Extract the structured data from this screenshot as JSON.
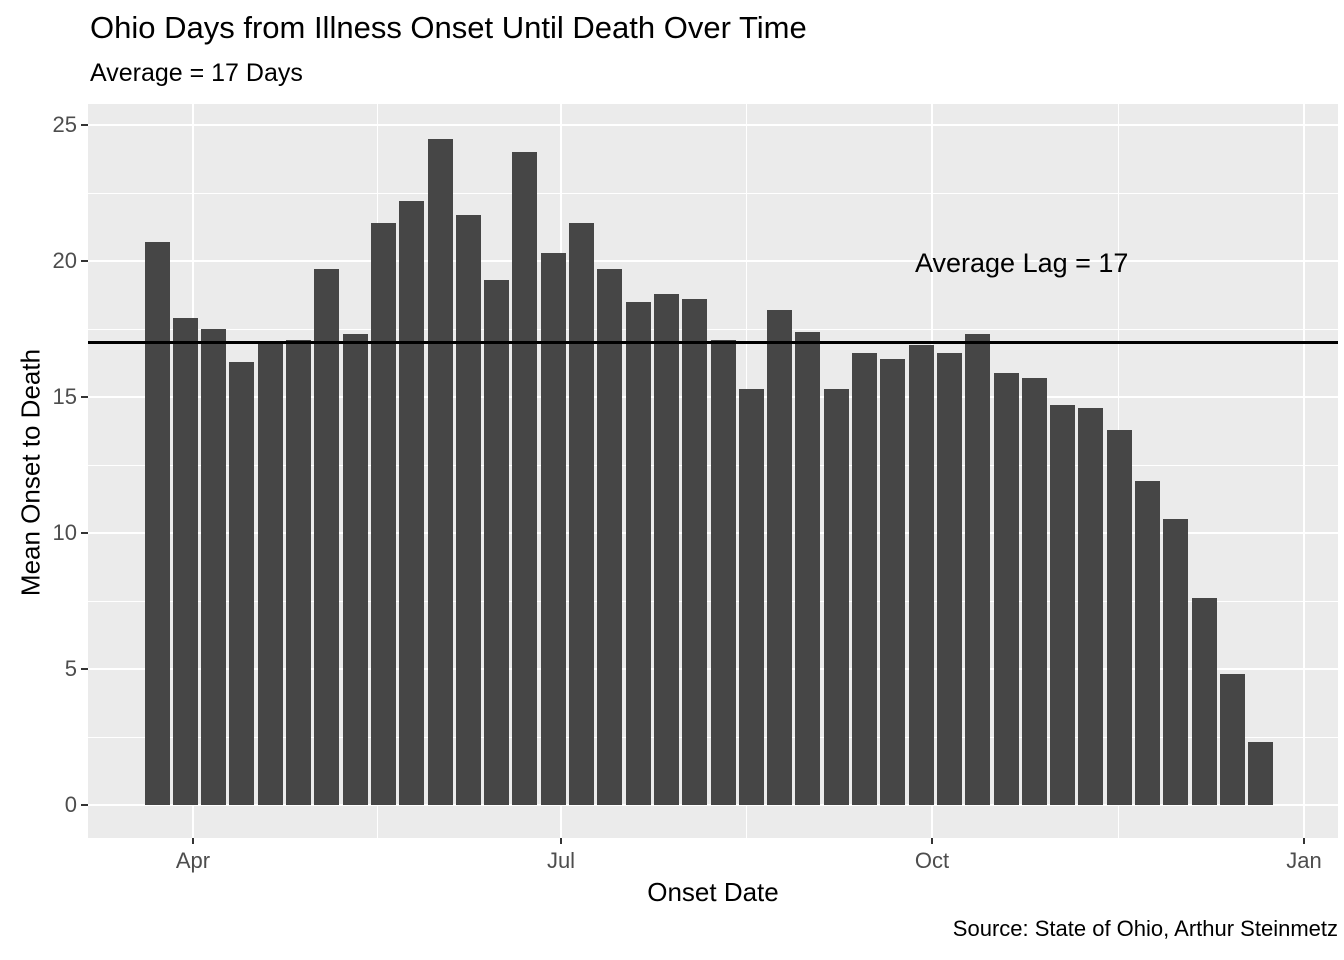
{
  "title": "Ohio Days from Illness Onset Until Death Over Time",
  "subtitle": "Average = 17 Days",
  "annotation": "Average Lag = 17",
  "caption": "Source: State of Ohio, Arthur Steinmetz",
  "x_axis": {
    "label": "Onset Date",
    "tick_labels": [
      "Apr",
      "Jul",
      "Oct",
      "Jan"
    ]
  },
  "y_axis": {
    "label": "Mean Onset to Death",
    "tick_labels": [
      "25",
      "20",
      "15",
      "10",
      "5",
      "0"
    ]
  },
  "colors": {
    "bar_fill": "#464646",
    "panel_background": "#EBEBEB",
    "gridline": "#FFFFFF",
    "reference_line": "#000000",
    "tick_label_text": "#4D4D4D",
    "title_text": "#000000"
  },
  "chart_data": {
    "type": "bar",
    "title": "Ohio Days from Illness Onset Until Death Over Time",
    "subtitle": "Average = 17 Days",
    "xlabel": "Onset Date",
    "ylabel": "Mean Onset to Death",
    "x_tick_labels": [
      "Apr",
      "Jul",
      "Oct",
      "Jan"
    ],
    "ylim": [
      0,
      25
    ],
    "y_major_ticks": [
      0,
      5,
      10,
      15,
      20,
      25
    ],
    "y_minor_ticks": [
      2.5,
      7.5,
      12.5,
      17.5,
      22.5
    ],
    "grid": "white major and minor gridlines on gray panel",
    "legend": "none",
    "reference_line_y": 17,
    "annotation_text": "Average Lag = 17",
    "bar_unit": "weekly mean days from onset to death",
    "x_week_of": [
      "2020-03-23",
      "2020-03-30",
      "2020-04-06",
      "2020-04-13",
      "2020-04-20",
      "2020-04-27",
      "2020-05-04",
      "2020-05-11",
      "2020-05-18",
      "2020-05-25",
      "2020-06-01",
      "2020-06-08",
      "2020-06-15",
      "2020-06-22",
      "2020-06-29",
      "2020-07-06",
      "2020-07-13",
      "2020-07-20",
      "2020-07-27",
      "2020-08-03",
      "2020-08-10",
      "2020-08-17",
      "2020-08-24",
      "2020-08-31",
      "2020-09-07",
      "2020-09-14",
      "2020-09-21",
      "2020-09-28",
      "2020-10-05",
      "2020-10-12",
      "2020-10-19",
      "2020-10-26",
      "2020-11-02",
      "2020-11-09",
      "2020-11-16",
      "2020-11-23",
      "2020-11-30",
      "2020-12-07",
      "2020-12-14",
      "2020-12-21"
    ],
    "values": [
      20.7,
      17.9,
      17.5,
      16.3,
      17.0,
      17.1,
      19.7,
      17.3,
      21.4,
      22.2,
      24.5,
      21.7,
      19.3,
      24.0,
      20.3,
      21.4,
      19.7,
      18.5,
      18.8,
      18.6,
      17.1,
      15.3,
      18.2,
      17.4,
      15.3,
      16.6,
      16.4,
      16.9,
      16.6,
      17.3,
      15.9,
      15.7,
      14.7,
      14.6,
      13.8,
      11.9,
      10.5,
      7.6,
      4.8,
      2.3
    ]
  }
}
